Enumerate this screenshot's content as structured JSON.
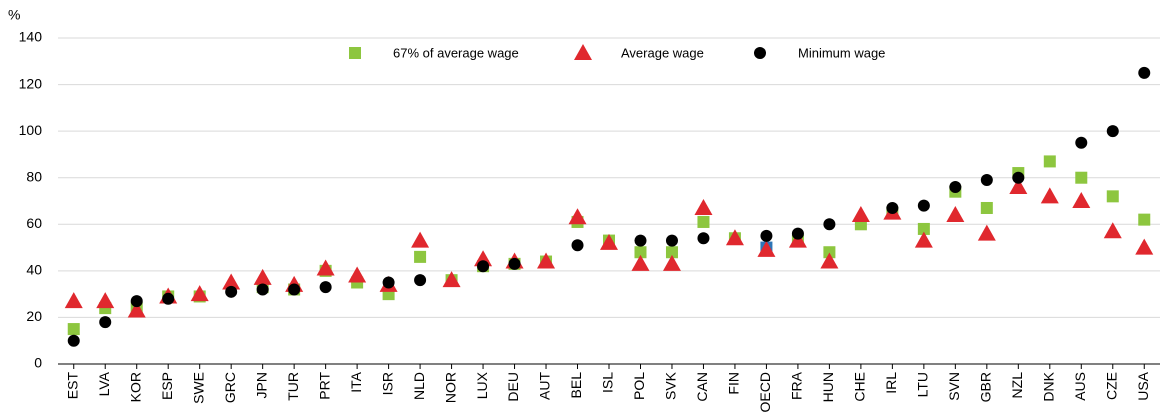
{
  "chart_data": {
    "type": "scatter",
    "y_unit_label": "%",
    "categories": [
      "EST",
      "LVA",
      "KOR",
      "ESP",
      "SWE",
      "GRC",
      "JPN",
      "TUR",
      "PRT",
      "ITA",
      "ISR",
      "NLD",
      "NOR",
      "LUX",
      "DEU",
      "AUT",
      "BEL",
      "ISL",
      "POL",
      "SVK",
      "CAN",
      "FIN",
      "OECD",
      "FRA",
      "HUN",
      "CHE",
      "IRL",
      "LTU",
      "SVN",
      "GBR",
      "NZL",
      "DNK",
      "AUS",
      "CZE",
      "USA"
    ],
    "series": [
      {
        "name": "67% of average wage",
        "color": "#8dc63f",
        "marker": "square",
        "highlight": {
          "index": 22,
          "color": "#2e75b6"
        },
        "values": [
          15,
          24,
          24,
          29,
          29,
          null,
          33,
          32,
          40,
          35,
          30,
          46,
          36,
          42,
          43,
          44,
          61,
          53,
          48,
          48,
          61,
          54,
          50,
          53,
          48,
          60,
          65,
          58,
          74,
          67,
          82,
          87,
          80,
          72,
          62
        ]
      },
      {
        "name": "Average wage",
        "color": "#e0282e",
        "marker": "triangle",
        "values": [
          27,
          27,
          23,
          29,
          30,
          35,
          37,
          34,
          41,
          38,
          34,
          53,
          36,
          45,
          44,
          44,
          63,
          52,
          43,
          43,
          67,
          54,
          49,
          53,
          44,
          64,
          65,
          53,
          64,
          56,
          76,
          72,
          70,
          57,
          50
        ]
      },
      {
        "name": "Minimum wage",
        "color": "#000000",
        "marker": "circle",
        "values": [
          10,
          18,
          27,
          28,
          null,
          31,
          32,
          32,
          33,
          null,
          35,
          36,
          null,
          42,
          43,
          null,
          51,
          null,
          53,
          53,
          54,
          null,
          55,
          56,
          60,
          null,
          67,
          68,
          76,
          79,
          80,
          null,
          95,
          100,
          125
        ]
      }
    ],
    "ylim": [
      0,
      140
    ],
    "yticks": [
      0,
      20,
      40,
      60,
      80,
      100,
      120,
      140
    ],
    "grid": true,
    "legend": "top"
  }
}
